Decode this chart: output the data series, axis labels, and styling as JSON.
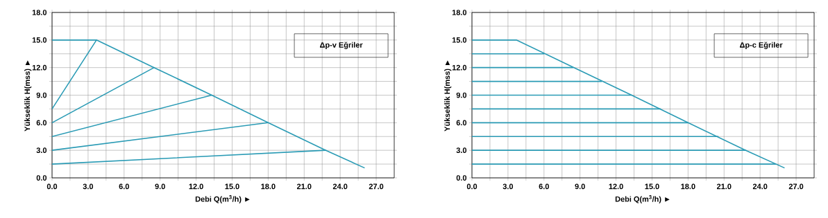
{
  "chart_data": [
    {
      "type": "line",
      "xlabel": "Debi Q(m$^{3}$/h) ►",
      "ylabel": "Yükseklik H(mss) ►",
      "annotations": [
        "Δp-v Eğriler"
      ],
      "grid": true,
      "xlim": [
        0,
        28.5
      ],
      "ylim": [
        0,
        18
      ],
      "xticks": [
        {
          "value": 0,
          "label": "0.0"
        },
        {
          "value": 1.5,
          "label": null
        },
        {
          "value": 3,
          "label": "3.0"
        },
        {
          "value": 4.5,
          "label": null
        },
        {
          "value": 6,
          "label": "6.0"
        },
        {
          "value": 7.5,
          "label": null
        },
        {
          "value": 9,
          "label": "9.0"
        },
        {
          "value": 10.5,
          "label": null
        },
        {
          "value": 12,
          "label": "12.0"
        },
        {
          "value": 13.5,
          "label": null
        },
        {
          "value": 15,
          "label": "15.0"
        },
        {
          "value": 16.5,
          "label": null
        },
        {
          "value": 18,
          "label": "18.0"
        },
        {
          "value": 19.5,
          "label": null
        },
        {
          "value": 21,
          "label": "21.0"
        },
        {
          "value": 22.5,
          "label": null
        },
        {
          "value": 24,
          "label": "24.0"
        },
        {
          "value": 25.5,
          "label": null
        },
        {
          "value": 27,
          "label": "27.0"
        }
      ],
      "yticks": [
        {
          "value": 0,
          "label": "0.0"
        },
        {
          "value": 1.5,
          "label": null
        },
        {
          "value": 3,
          "label": "3.0"
        },
        {
          "value": 4.5,
          "label": null
        },
        {
          "value": 6,
          "label": "6.0"
        },
        {
          "value": 7.5,
          "label": null
        },
        {
          "value": 9,
          "label": "9.0"
        },
        {
          "value": 10.5,
          "label": null
        },
        {
          "value": 12,
          "label": "12.0"
        },
        {
          "value": 13.5,
          "label": null
        },
        {
          "value": 15,
          "label": "15.0"
        },
        {
          "value": 16.5,
          "label": null
        },
        {
          "value": 18,
          "label": "18.0"
        }
      ],
      "series": [
        {
          "color": "#2a9bb5",
          "x": [
            0,
            3.7,
            8.5,
            13.3,
            18,
            22.8,
            26
          ],
          "values": [
            15,
            15,
            12,
            9,
            6,
            3,
            1.1
          ]
        },
        {
          "color": "#2a9bb5",
          "x": [
            0,
            3.7
          ],
          "values": [
            7.5,
            15
          ]
        },
        {
          "color": "#2a9bb5",
          "x": [
            0,
            8.5
          ],
          "values": [
            6,
            12
          ]
        },
        {
          "color": "#2a9bb5",
          "x": [
            0,
            13.3
          ],
          "values": [
            4.5,
            9
          ]
        },
        {
          "color": "#2a9bb5",
          "x": [
            0,
            18
          ],
          "values": [
            3,
            6
          ]
        },
        {
          "color": "#2a9bb5",
          "x": [
            0,
            22.8
          ],
          "values": [
            1.5,
            3
          ]
        }
      ]
    },
    {
      "type": "line",
      "xlabel": "Debi Q(m$^{3}$/h) ►",
      "ylabel": "Yükseklik H(mss) ►",
      "annotations": [
        "Δp-c Eğriler"
      ],
      "grid": true,
      "xlim": [
        0,
        28.5
      ],
      "ylim": [
        0,
        18
      ],
      "xticks": [
        {
          "value": 0,
          "label": "0.0"
        },
        {
          "value": 1.5,
          "label": null
        },
        {
          "value": 3,
          "label": "3.0"
        },
        {
          "value": 4.5,
          "label": null
        },
        {
          "value": 6,
          "label": "6.0"
        },
        {
          "value": 7.5,
          "label": null
        },
        {
          "value": 9,
          "label": "9.0"
        },
        {
          "value": 10.5,
          "label": null
        },
        {
          "value": 12,
          "label": "12.0"
        },
        {
          "value": 13.5,
          "label": null
        },
        {
          "value": 15,
          "label": "15.0"
        },
        {
          "value": 16.5,
          "label": null
        },
        {
          "value": 18,
          "label": "18.0"
        },
        {
          "value": 19.5,
          "label": null
        },
        {
          "value": 21,
          "label": "21.0"
        },
        {
          "value": 22.5,
          "label": null
        },
        {
          "value": 24,
          "label": "24.0"
        },
        {
          "value": 25.5,
          "label": null
        },
        {
          "value": 27,
          "label": "27.0"
        }
      ],
      "yticks": [
        {
          "value": 0,
          "label": "0.0"
        },
        {
          "value": 1.5,
          "label": null
        },
        {
          "value": 3,
          "label": "3.0"
        },
        {
          "value": 4.5,
          "label": null
        },
        {
          "value": 6,
          "label": "6.0"
        },
        {
          "value": 7.5,
          "label": null
        },
        {
          "value": 9,
          "label": "9.0"
        },
        {
          "value": 10.5,
          "label": null
        },
        {
          "value": 12,
          "label": "12.0"
        },
        {
          "value": 13.5,
          "label": null
        },
        {
          "value": 15,
          "label": "15.0"
        },
        {
          "value": 16.5,
          "label": null
        },
        {
          "value": 18,
          "label": "18.0"
        }
      ],
      "series": [
        {
          "color": "#2a9bb5",
          "x": [
            0,
            3.7,
            8.5,
            13.3,
            18,
            22.8,
            26
          ],
          "values": [
            15,
            15,
            12,
            9,
            6,
            3,
            1.1
          ]
        },
        {
          "color": "#2a9bb5",
          "x": [
            0,
            6
          ],
          "values": [
            13.5,
            13.5
          ]
        },
        {
          "color": "#2a9bb5",
          "x": [
            0,
            8.4
          ],
          "values": [
            12,
            12
          ]
        },
        {
          "color": "#2a9bb5",
          "x": [
            0,
            10.8
          ],
          "values": [
            10.5,
            10.5
          ]
        },
        {
          "color": "#2a9bb5",
          "x": [
            0,
            13.3
          ],
          "values": [
            9,
            9
          ]
        },
        {
          "color": "#2a9bb5",
          "x": [
            0,
            15.7
          ],
          "values": [
            7.5,
            7.5
          ]
        },
        {
          "color": "#2a9bb5",
          "x": [
            0,
            18
          ],
          "values": [
            6,
            6
          ]
        },
        {
          "color": "#2a9bb5",
          "x": [
            0,
            20.5
          ],
          "values": [
            4.5,
            4.5
          ]
        },
        {
          "color": "#2a9bb5",
          "x": [
            0,
            22.8
          ],
          "values": [
            3,
            3
          ]
        },
        {
          "color": "#2a9bb5",
          "x": [
            0,
            25.3
          ],
          "values": [
            1.5,
            1.5
          ]
        }
      ]
    }
  ]
}
